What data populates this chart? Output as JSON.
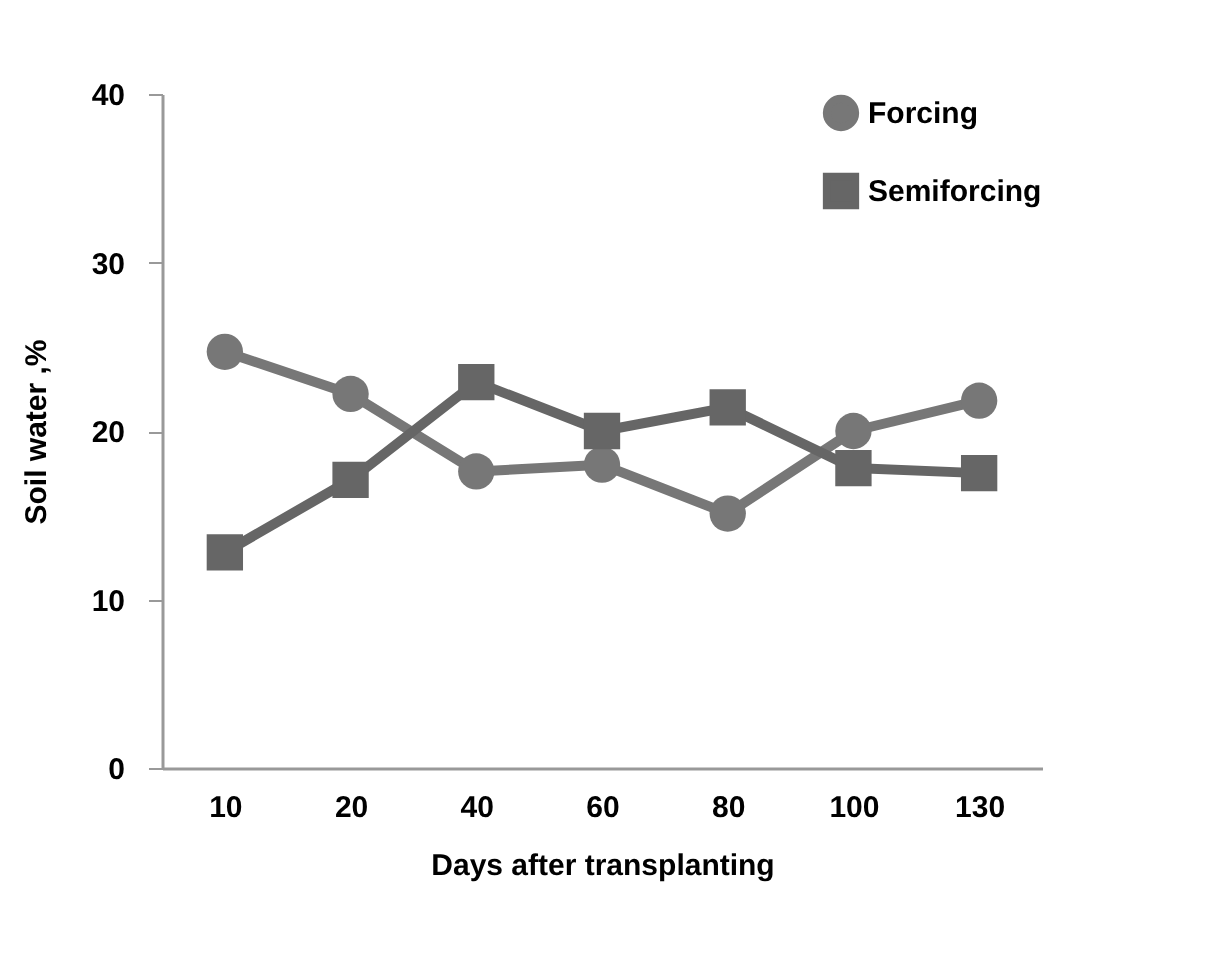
{
  "chart_data": {
    "type": "line",
    "xlabel": "Days after transplanting",
    "ylabel": "Soil water ,%",
    "categories": [
      "10",
      "20",
      "40",
      "60",
      "80",
      "100",
      "130"
    ],
    "series": [
      {
        "name": "Forcing",
        "color": "#777777",
        "marker": "circle",
        "values": [
          24.7,
          22.2,
          17.6,
          18.0,
          15.1,
          20.0,
          21.8
        ]
      },
      {
        "name": "Semiforcing",
        "color": "#666666",
        "marker": "square",
        "values": [
          12.8,
          17.1,
          22.9,
          20.0,
          21.4,
          17.8,
          17.5
        ]
      }
    ],
    "ylim": [
      0,
      40
    ],
    "yticks": [
      0,
      10,
      20,
      30,
      40
    ],
    "grid": false,
    "legend": "top right"
  }
}
